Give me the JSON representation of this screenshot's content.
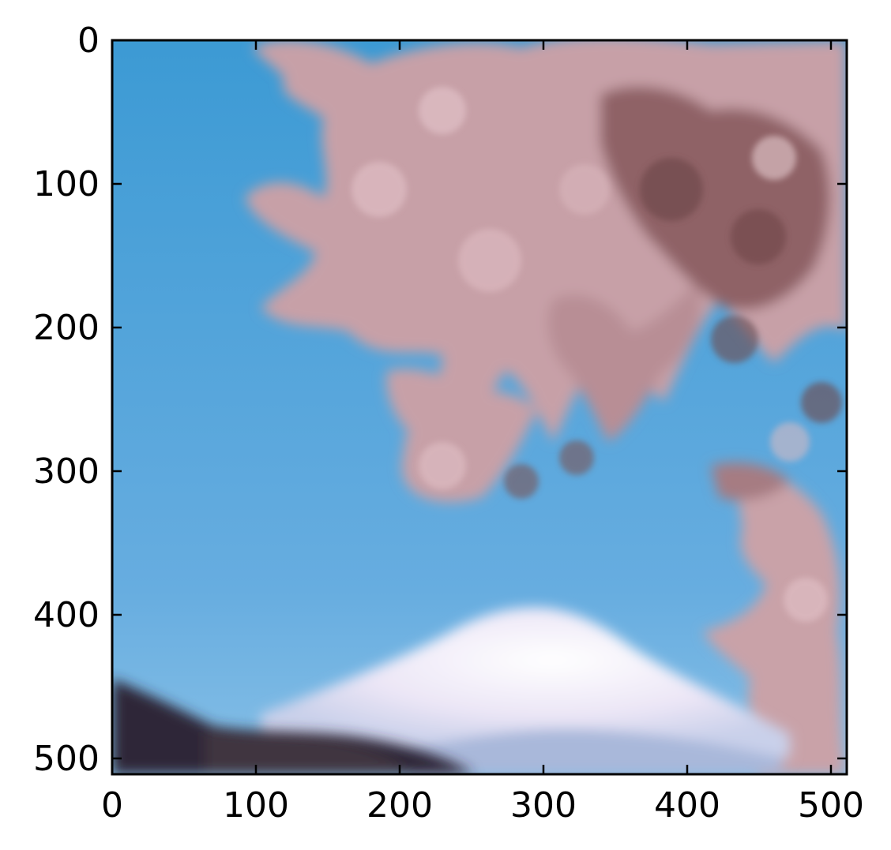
{
  "image": {
    "description_icon": "photo-icon",
    "colors": {
      "sky_top": "#3e9fd6",
      "sky_bottom": "#7fb8e2",
      "blossom": "#c9a2a8",
      "blossom_dark": "#7d5254",
      "snow": "#f4f0fa",
      "ridge": "#2e2838"
    }
  },
  "axes": {
    "xlim": [
      0,
      511
    ],
    "ylim": [
      511,
      0
    ],
    "x_ticks": [
      0,
      100,
      200,
      300,
      400,
      500
    ],
    "y_ticks": [
      0,
      100,
      200,
      300,
      400,
      500
    ],
    "x_tick_labels": [
      "0",
      "100",
      "200",
      "300",
      "400",
      "500"
    ],
    "y_tick_labels": [
      "0",
      "100",
      "200",
      "300",
      "400",
      "500"
    ],
    "y_inverted": true
  }
}
